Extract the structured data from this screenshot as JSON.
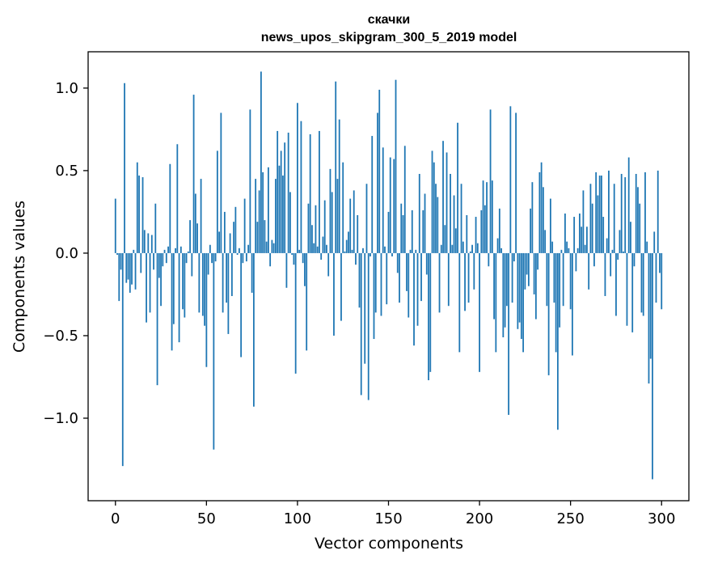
{
  "chart_data": {
    "type": "bar",
    "title": "скачки",
    "subtitle": "news_upos_skipgram_300_5_2019 model",
    "xlabel": "Vector components",
    "ylabel": "Components values",
    "xlim": [
      -15,
      315
    ],
    "ylim": [
      -1.5,
      1.22
    ],
    "xticks": [
      0,
      50,
      100,
      150,
      200,
      250,
      300
    ],
    "xtick_labels": [
      "0",
      "50",
      "100",
      "150",
      "200",
      "250",
      "300"
    ],
    "yticks": [
      -1.0,
      -0.5,
      0.0,
      0.5,
      1.0
    ],
    "ytick_labels": [
      "−1.0",
      "−0.5",
      "0.0",
      "0.5",
      "1.0"
    ],
    "color": "#1f77b4",
    "values": [
      0.33,
      -0.01,
      -0.29,
      -0.1,
      -1.29,
      1.03,
      -0.18,
      -0.16,
      -0.24,
      -0.19,
      0.02,
      -0.22,
      0.55,
      0.47,
      -0.12,
      0.46,
      0.14,
      -0.42,
      0.12,
      -0.36,
      0.11,
      -0.1,
      0.3,
      -0.8,
      -0.15,
      -0.32,
      -0.08,
      0.02,
      -0.06,
      0.04,
      0.54,
      -0.59,
      -0.43,
      0.03,
      0.66,
      -0.54,
      0.04,
      -0.34,
      -0.39,
      -0.06,
      0.01,
      0.2,
      -0.14,
      0.96,
      0.36,
      0.18,
      -0.36,
      0.45,
      -0.38,
      -0.44,
      -0.69,
      -0.13,
      0.05,
      -0.06,
      -1.19,
      -0.05,
      0.62,
      0.13,
      0.85,
      -0.36,
      0.25,
      -0.3,
      -0.49,
      0.12,
      -0.26,
      0.19,
      0.28,
      -0.01,
      0.03,
      -0.63,
      -0.06,
      0.33,
      -0.05,
      0.05,
      0.87,
      -0.24,
      -0.93,
      0.45,
      0.19,
      0.38,
      1.1,
      0.49,
      0.2,
      0.07,
      0.52,
      -0.08,
      0.08,
      0.06,
      0.45,
      0.74,
      0.53,
      0.62,
      0.47,
      0.67,
      -0.21,
      0.73,
      0.37,
      -0.01,
      -0.07,
      -0.73,
      0.91,
      0.02,
      0.8,
      -0.06,
      -0.2,
      -0.59,
      0.3,
      0.72,
      0.17,
      0.06,
      0.29,
      0.04,
      0.74,
      -0.04,
      0.1,
      0.32,
      0.05,
      -0.14,
      0.51,
      0.37,
      -0.5,
      1.04,
      0.45,
      0.81,
      -0.41,
      0.55,
      0.01,
      0.08,
      0.13,
      0.33,
      0.02,
      0.38,
      -0.07,
      0.23,
      -0.33,
      -0.86,
      0.03,
      -0.67,
      0.42,
      -0.89,
      -0.02,
      0.71,
      -0.52,
      -0.36,
      0.85,
      0.99,
      -0.38,
      0.64,
      0.04,
      -0.31,
      0.25,
      0.58,
      -0.02,
      0.57,
      1.05,
      -0.12,
      -0.3,
      0.3,
      0.23,
      0.65,
      -0.23,
      -0.39,
      0.02,
      0.26,
      -0.56,
      0.02,
      -0.44,
      0.48,
      -0.29,
      0.26,
      0.36,
      -0.13,
      -0.77,
      -0.72,
      0.62,
      0.55,
      0.42,
      0.34,
      -0.36,
      0.05,
      0.68,
      0.17,
      0.61,
      -0.32,
      0.48,
      0.05,
      0.35,
      0.15,
      0.79,
      -0.6,
      0.42,
      0.07,
      -0.35,
      0.23,
      -0.3,
      0.01,
      0.05,
      -0.22,
      0.22,
      0.06,
      -0.72,
      0.26,
      0.44,
      0.29,
      0.43,
      -0.08,
      0.87,
      0.44,
      -0.4,
      -0.6,
      0.09,
      0.27,
      0.03,
      -0.51,
      -0.45,
      -0.32,
      -0.98,
      0.89,
      -0.3,
      -0.05,
      0.85,
      -0.46,
      -0.42,
      -0.52,
      -0.6,
      -0.22,
      -0.13,
      -0.2,
      0.27,
      0.43,
      -0.25,
      -0.4,
      -0.1,
      0.49,
      0.55,
      0.4,
      0.14,
      -0.32,
      -0.74,
      0.33,
      0.07,
      -0.3,
      -0.6,
      -1.07,
      -0.45,
      0.02,
      -0.32,
      0.24,
      0.07,
      0.03,
      -0.34,
      -0.62,
      0.22,
      -0.11,
      0.03,
      0.24,
      0.16,
      0.38,
      0.05,
      0.16,
      -0.22,
      0.42,
      0.3,
      -0.08,
      0.49,
      0.35,
      0.47,
      0.47,
      0.22,
      -0.26,
      0.09,
      0.5,
      -0.14,
      0.02,
      0.42,
      -0.38,
      -0.04,
      0.14,
      0.48,
      0.01,
      0.46,
      -0.44,
      0.58,
      0.19,
      -0.48,
      -0.08,
      0.48,
      0.4,
      0.3,
      -0.36,
      -0.38,
      0.49,
      0.07,
      -0.79,
      -0.64,
      -1.37,
      0.13,
      -0.3,
      0.5,
      -0.12,
      -0.34
    ]
  }
}
